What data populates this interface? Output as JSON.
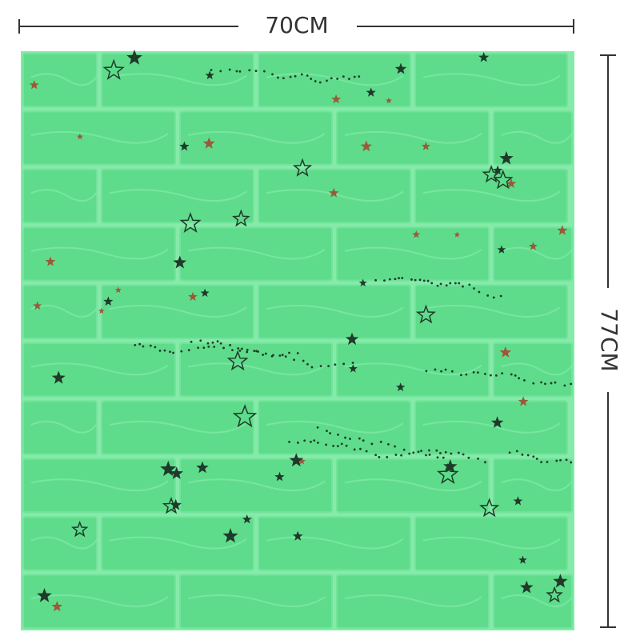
{
  "dimensions": {
    "width_label": "70CM",
    "height_label": "77CM"
  }
}
